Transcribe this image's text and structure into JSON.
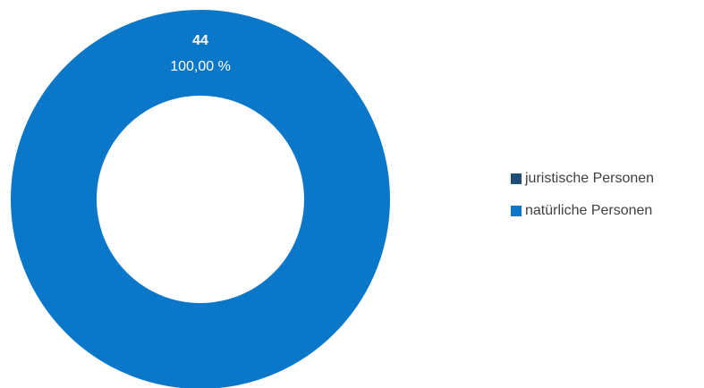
{
  "chart_data": {
    "type": "pie",
    "variant": "donut",
    "categories": [
      "juristische Personen",
      "natürliche Personen"
    ],
    "values": [
      0,
      44
    ],
    "percent_labels": [
      "0,00 %",
      "100,00 %"
    ],
    "data_labels": [
      {
        "value": "44",
        "percent": "100,00 %",
        "category": "natürliche Personen"
      }
    ],
    "colors": [
      "#1f4e79",
      "#0a77c9"
    ],
    "title": "",
    "legend_position": "right"
  },
  "legend": {
    "items": [
      {
        "label": "juristische Personen",
        "color": "#1f4e79"
      },
      {
        "label": "natürliche Personen",
        "color": "#0a77c9"
      }
    ]
  }
}
